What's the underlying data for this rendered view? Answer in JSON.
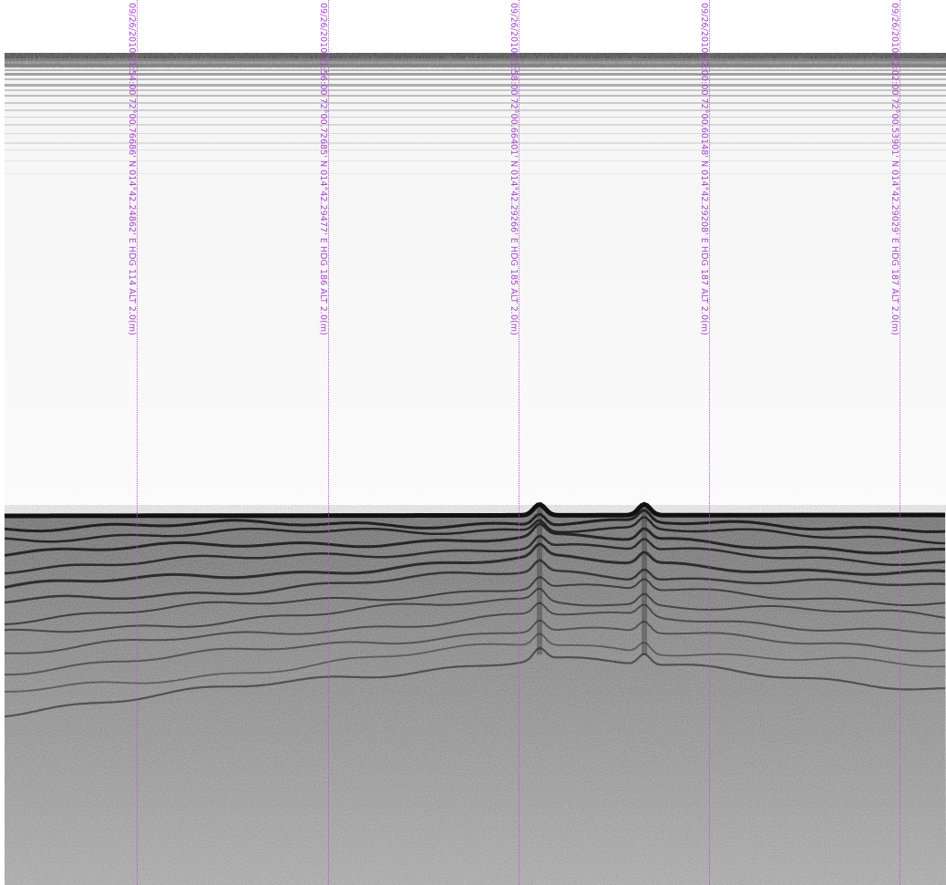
{
  "image": {
    "kind": "sub-bottom profiler echogram",
    "palette": {
      "water": "#fafafa",
      "seabed": "#151515",
      "sediment": "#8c8c8c",
      "annotation": "#a646c8"
    }
  },
  "fix_marks": [
    {
      "label": "09/26/2010 21:54:00 72°00.76686' N 014°42.24862' E HDG 114 ALT 2.0(m)"
    },
    {
      "label": "09/26/2010 21:56:00 72°00.72685' N 014°42.29477' E HDG 186 ALT 2.0(m)"
    },
    {
      "label": "09/26/2010 21:58:00 72°00.66401' N 014°42.29266' E HDG 185 ALT 2.0(m)"
    },
    {
      "label": "09/26/2010 22:00:00 72°00.60148' N 014°42.29208' E HDG 187 ALT 2.0(m)"
    },
    {
      "label": "09/26/2010 22:02:00 72°00.53901' N 014°42.29029' E HDG 187 ALT 2.0(m)"
    }
  ]
}
